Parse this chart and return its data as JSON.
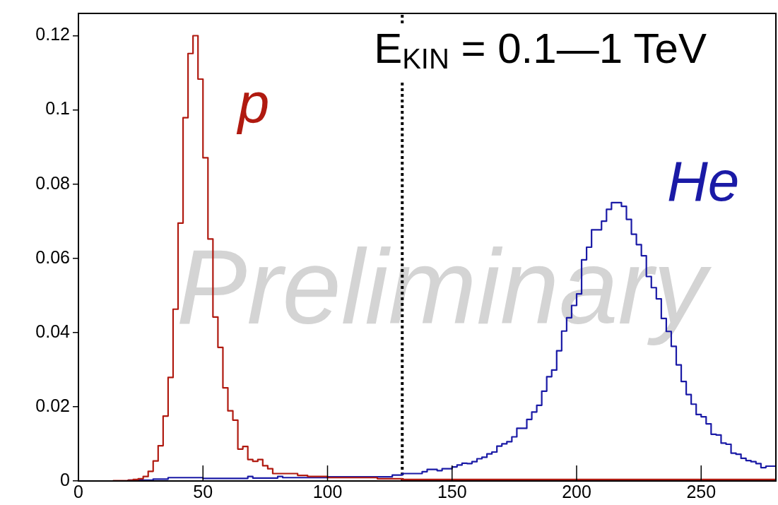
{
  "chart_data": {
    "type": "histogram",
    "title": "E$_{KIN}$ = 0.1—1 TeV",
    "annotations": [
      "Preliminary"
    ],
    "bins": [
      0,
      2,
      4,
      6,
      8,
      10,
      12,
      14,
      16,
      18,
      20,
      22,
      24,
      26,
      28,
      30,
      32,
      34,
      36,
      38,
      40,
      42,
      44,
      46,
      48,
      50,
      52,
      54,
      56,
      58,
      60,
      62,
      64,
      66,
      68,
      70,
      72,
      74,
      76,
      78,
      80,
      82,
      84,
      86,
      88,
      90,
      92,
      94,
      96,
      98,
      100,
      102,
      104,
      106,
      108,
      110,
      112,
      114,
      116,
      118,
      120,
      122,
      124,
      126,
      128,
      130,
      132,
      134,
      136,
      138,
      140,
      142,
      144,
      146,
      148,
      150,
      152,
      154,
      156,
      158,
      160,
      162,
      164,
      166,
      168,
      170,
      172,
      174,
      176,
      178,
      180,
      182,
      184,
      186,
      188,
      190,
      192,
      194,
      196,
      198,
      200,
      202,
      204,
      206,
      208,
      210,
      212,
      214,
      216,
      218,
      220,
      222,
      224,
      226,
      228,
      230,
      232,
      234,
      236,
      238,
      240,
      242,
      244,
      246,
      248,
      250,
      252,
      254,
      256,
      258,
      260,
      262,
      264,
      266,
      268,
      270,
      272,
      274,
      276,
      278,
      280
    ],
    "series": [
      {
        "name": "p",
        "color": "#b01a10",
        "values": [
          0,
          0,
          0,
          0,
          0,
          0,
          0,
          0.0001,
          0.0001,
          0.0001,
          0.0002,
          0.0004,
          0.0006,
          0.0012,
          0.0026,
          0.0054,
          0.0095,
          0.0175,
          0.0279,
          0.0463,
          0.0695,
          0.0979,
          0.1152,
          0.12,
          0.1083,
          0.0871,
          0.0652,
          0.0442,
          0.036,
          0.0251,
          0.0189,
          0.0164,
          0.0086,
          0.0093,
          0.0058,
          0.0053,
          0.0058,
          0.0041,
          0.0033,
          0.002,
          0.002,
          0.002,
          0.002,
          0.002,
          0.0015,
          0.0015,
          0.0012,
          0.0012,
          0.0012,
          0.0012,
          0.0009,
          0.0009,
          0.0009,
          0.0009,
          0.0009,
          0.0009,
          0.0009,
          0.0009,
          0.0009,
          0.0009,
          0.0006,
          0.0006,
          0.0006,
          0.0006,
          0.0006,
          0.0004,
          0.0004,
          0.0004,
          0.0004,
          0.0004,
          0.0004,
          0.0004,
          0.0004,
          0.0004,
          0.0004,
          0.0004,
          0.0004,
          0.0004,
          0.0004,
          0.0004,
          0.0004,
          0.0004,
          0.0004,
          0.0004,
          0.0004,
          0.0004,
          0.0004,
          0.0004,
          0.0004,
          0.0004,
          0.0004,
          0.0004,
          0.0004,
          0.0004,
          0.0004,
          0.0004,
          0.0004,
          0.0004,
          0.0004,
          0.0004,
          0.0004,
          0.0004,
          0.0004,
          0.0004,
          0.0004,
          0.0004,
          0.0004,
          0.0004,
          0.0004,
          0.0004,
          0.0004,
          0.0004,
          0.0004,
          0.0004,
          0.0004,
          0.0004,
          0.0004,
          0.0004,
          0.0004,
          0.0004,
          0.0004,
          0.0004,
          0.0004,
          0.0004,
          0.0004,
          0.0004,
          0.0004,
          0.0004,
          0.0004,
          0.0004,
          0.0004,
          0.0004,
          0.0004,
          0.0004,
          0.0004,
          0.0004,
          0.0004,
          0.0004,
          0.0004,
          0.0004
        ]
      },
      {
        "name": "He",
        "color": "#1a1aa6",
        "values": [
          0,
          0,
          0,
          0,
          0,
          0,
          0,
          0,
          0,
          0,
          0.0002,
          0.0002,
          0.0002,
          0.0002,
          0.0002,
          0.0005,
          0.0005,
          0.0005,
          0.0009,
          0.0009,
          0.0009,
          0.0009,
          0.0009,
          0.0009,
          0.0009,
          0.0007,
          0.0007,
          0.0007,
          0.0007,
          0.0007,
          0.0007,
          0.0007,
          0.0007,
          0.0007,
          0.0012,
          0.0008,
          0.0008,
          0.0008,
          0.0008,
          0.0008,
          0.0012,
          0.0009,
          0.0009,
          0.0009,
          0.0009,
          0.0009,
          0.0009,
          0.0009,
          0.0009,
          0.0009,
          0.0011,
          0.0011,
          0.0011,
          0.0011,
          0.0011,
          0.0011,
          0.0011,
          0.0011,
          0.0011,
          0.0011,
          0.0011,
          0.0011,
          0.0011,
          0.0016,
          0.0016,
          0.002,
          0.002,
          0.002,
          0.002,
          0.0025,
          0.0031,
          0.0031,
          0.0028,
          0.0033,
          0.0033,
          0.0038,
          0.0043,
          0.0048,
          0.0047,
          0.0052,
          0.006,
          0.0064,
          0.0073,
          0.0078,
          0.0094,
          0.01,
          0.0106,
          0.0119,
          0.0142,
          0.0142,
          0.0166,
          0.0186,
          0.0204,
          0.0242,
          0.0281,
          0.0299,
          0.0351,
          0.0404,
          0.044,
          0.0473,
          0.0504,
          0.0596,
          0.063,
          0.0677,
          0.0677,
          0.07,
          0.0732,
          0.075,
          0.075,
          0.074,
          0.0705,
          0.0665,
          0.0637,
          0.0607,
          0.0551,
          0.0521,
          0.0491,
          0.0438,
          0.0403,
          0.0363,
          0.0313,
          0.0268,
          0.0233,
          0.0207,
          0.0179,
          0.0173,
          0.0154,
          0.0126,
          0.0124,
          0.0102,
          0.0099,
          0.0075,
          0.0072,
          0.0061,
          0.0055,
          0.0052,
          0.0047,
          0.0036,
          0.004,
          0.004
        ]
      }
    ],
    "xlim": [
      0,
      280
    ],
    "xticks": [
      0,
      50,
      100,
      150,
      200,
      250
    ],
    "ylim": [
      0,
      0.126
    ],
    "yticks": [
      0,
      0.02,
      0.04,
      0.06,
      0.08,
      0.1,
      0.12
    ],
    "ref_lines": [
      {
        "axis": "x",
        "value": 130,
        "color": "#000000",
        "line_style": "dotted"
      }
    ],
    "grid": false,
    "legend": false
  }
}
